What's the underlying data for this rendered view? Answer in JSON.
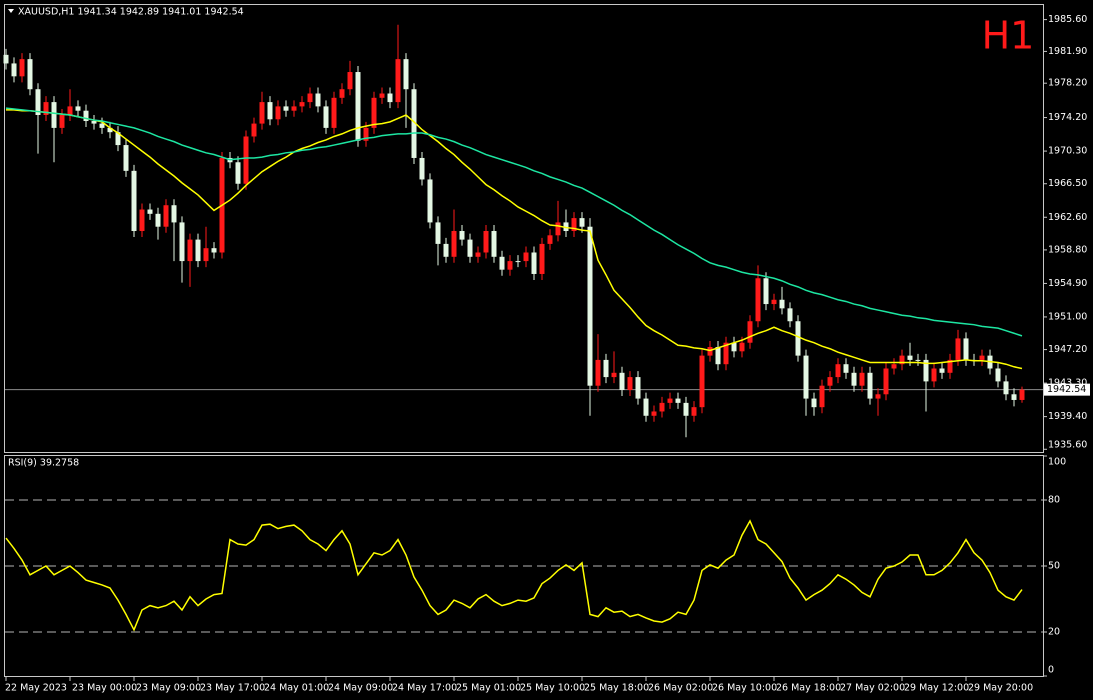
{
  "chart_data": [
    {
      "type": "candlestick",
      "title": "XAUUSD,H1  1941.34 1942.89 1941.01 1942.54",
      "timeframe": "H1",
      "categories": [
        "22 May 2023",
        null,
        null,
        null,
        null,
        null,
        null,
        null,
        "23 May 00:00",
        null,
        null,
        null,
        null,
        null,
        null,
        null,
        "23 May 09:00",
        null,
        null,
        null,
        null,
        null,
        null,
        null,
        "23 May 17:00",
        null,
        null,
        null,
        null,
        null,
        null,
        null,
        "24 May 01:00",
        null,
        null,
        null,
        null,
        null,
        null,
        null,
        "24 May 09:00",
        null,
        null,
        null,
        null,
        null,
        null,
        null,
        "24 May 17:00",
        null,
        null,
        null,
        null,
        null,
        null,
        null,
        "25 May 01:00",
        null,
        null,
        null,
        null,
        null,
        null,
        null,
        "25 May 10:00",
        null,
        null,
        null,
        null,
        null,
        null,
        null,
        "25 May 18:00",
        null,
        null,
        null,
        null,
        null,
        null,
        null,
        "26 May 02:00",
        null,
        null,
        null,
        null,
        null,
        null,
        null,
        "26 May 10:00",
        null,
        null,
        null,
        null,
        null,
        null,
        null,
        "26 May 18:00",
        null,
        null,
        null,
        null,
        null,
        null,
        null,
        "27 May 02:00",
        null,
        null,
        null,
        null,
        null,
        null,
        null,
        "29 May 12:00",
        null,
        null,
        null,
        null,
        null,
        null,
        null,
        "29 May 20:00",
        null,
        null,
        null,
        null,
        null,
        null,
        null
      ],
      "open": [
        1981.5,
        1980.5,
        1979.0,
        1981.0,
        1977.5,
        1974.5,
        1976.0,
        1973.0,
        1974.5,
        1975.5,
        1975.0,
        1973.8,
        1973.5,
        1973.0,
        1972.5,
        1971.0,
        1968.0,
        1961.0,
        1963.5,
        1963.0,
        1961.5,
        1964.0,
        1962.0,
        1957.5,
        1960.0,
        1957.5,
        1959.0,
        1958.5,
        1969.5,
        1969.0,
        1966.5,
        1972.0,
        1973.5,
        1976.0,
        1974.0,
        1975.5,
        1975.0,
        1975.5,
        1976.0,
        1977.0,
        1975.5,
        1973.0,
        1976.5,
        1977.5,
        1979.5,
        1971.5,
        1973.0,
        1976.5,
        1977.0,
        1976.0,
        1981.0,
        1977.5,
        1969.5,
        1967.0,
        1962.0,
        1959.5,
        1958.0,
        1961.0,
        1960.0,
        1958.0,
        1958.5,
        1961.0,
        1958.0,
        1956.5,
        1957.5,
        1957.5,
        1958.5,
        1956.0,
        1959.5,
        1960.5,
        1962.0,
        1961.0,
        1962.5,
        1961.5,
        1943.0,
        1946.0,
        1944.0,
        1944.5,
        1942.5,
        1944.0,
        1941.5,
        1939.5,
        1940.0,
        1941.0,
        1941.5,
        1941.0,
        1939.5,
        1940.5,
        1946.5,
        1947.5,
        1945.5,
        1948.0,
        1947.0,
        1948.0,
        1950.5,
        1955.5,
        1952.5,
        1953.0,
        1952.0,
        1950.5,
        1946.5,
        1941.5,
        1940.5,
        1943.0,
        1944.0,
        1945.5,
        1944.5,
        1943.0,
        1944.5,
        1941.5,
        1942.0,
        1945.0,
        1945.5,
        1946.5,
        1946.0,
        1946.0,
        1943.5,
        1945.0,
        1944.5,
        1946.0,
        1948.5,
        1946.0,
        1946.0,
        1946.5,
        1945.0,
        1943.5,
        1942.0,
        1941.34
      ],
      "high": [
        1982.2,
        1981.2,
        1981.7,
        1981.7,
        1978.2,
        1976.7,
        1976.7,
        1975.2,
        1977.5,
        1976.2,
        1975.7,
        1974.5,
        1974.2,
        1973.7,
        1973.2,
        1971.7,
        1968.7,
        1964.2,
        1964.2,
        1963.7,
        1964.7,
        1964.7,
        1962.7,
        1960.7,
        1960.7,
        1961.5,
        1959.7,
        1970.2,
        1970.2,
        1969.7,
        1972.7,
        1974.2,
        1977.2,
        1976.7,
        1976.2,
        1976.2,
        1976.2,
        1976.7,
        1977.7,
        1977.7,
        1976.2,
        1977.2,
        1978.2,
        1980.8,
        1980.2,
        1973.7,
        1977.2,
        1977.7,
        1977.7,
        1985.0,
        1981.7,
        1978.2,
        1970.2,
        1967.7,
        1962.7,
        1960.2,
        1963.5,
        1961.7,
        1960.7,
        1959.2,
        1961.7,
        1961.7,
        1958.7,
        1958.2,
        1958.2,
        1959.2,
        1959.2,
        1960.2,
        1961.2,
        1964.5,
        1963.5,
        1963.2,
        1963.2,
        1962.5,
        1949.0,
        1946.7,
        1947.0,
        1945.2,
        1944.7,
        1944.7,
        1942.2,
        1940.7,
        1941.7,
        1942.2,
        1942.2,
        1941.7,
        1941.2,
        1947.2,
        1948.2,
        1948.2,
        1948.7,
        1948.7,
        1948.7,
        1951.2,
        1957.0,
        1956.2,
        1953.7,
        1954.5,
        1952.7,
        1951.2,
        1947.2,
        1942.2,
        1943.7,
        1944.7,
        1946.2,
        1946.2,
        1945.2,
        1945.2,
        1945.2,
        1942.7,
        1945.7,
        1946.2,
        1947.2,
        1948.0,
        1946.7,
        1946.7,
        1945.7,
        1945.7,
        1946.7,
        1949.5,
        1949.2,
        1946.7,
        1947.2,
        1947.2,
        1945.7,
        1944.2,
        1942.7,
        1942.89
      ],
      "low": [
        1979.8,
        1978.3,
        1978.3,
        1976.8,
        1970.0,
        1973.8,
        1969.0,
        1972.3,
        1973.8,
        1974.3,
        1973.1,
        1972.8,
        1972.3,
        1971.8,
        1970.3,
        1967.3,
        1960.3,
        1960.3,
        1962.3,
        1960.0,
        1960.8,
        1957.5,
        1955.0,
        1954.5,
        1956.8,
        1956.8,
        1957.8,
        1957.8,
        1968.3,
        1965.8,
        1965.8,
        1971.3,
        1972.8,
        1973.3,
        1973.3,
        1974.3,
        1974.3,
        1974.8,
        1975.3,
        1974.8,
        1972.3,
        1972.3,
        1975.8,
        1976.8,
        1970.8,
        1970.8,
        1972.3,
        1975.8,
        1975.3,
        1975.3,
        1973.0,
        1968.8,
        1966.3,
        1961.3,
        1957.0,
        1957.3,
        1957.3,
        1959.3,
        1957.3,
        1957.3,
        1957.8,
        1957.3,
        1955.8,
        1955.8,
        1956.8,
        1956.8,
        1955.3,
        1955.3,
        1958.8,
        1959.8,
        1960.3,
        1960.3,
        1960.8,
        1939.5,
        1942.3,
        1943.3,
        1943.3,
        1941.8,
        1941.8,
        1940.8,
        1938.8,
        1938.8,
        1939.3,
        1940.3,
        1940.3,
        1937.0,
        1938.8,
        1939.8,
        1945.8,
        1944.8,
        1944.8,
        1946.3,
        1946.3,
        1947.3,
        1949.8,
        1951.8,
        1951.8,
        1951.3,
        1949.8,
        1945.8,
        1939.5,
        1939.5,
        1939.8,
        1942.3,
        1943.3,
        1943.8,
        1942.3,
        1942.3,
        1940.8,
        1939.5,
        1941.3,
        1944.3,
        1944.8,
        1945.3,
        1945.3,
        1940.0,
        1942.8,
        1943.8,
        1943.8,
        1945.3,
        1945.3,
        1945.3,
        1945.3,
        1944.3,
        1942.8,
        1941.3,
        1940.6,
        1941.01
      ],
      "close": [
        1980.5,
        1979.0,
        1981.0,
        1977.5,
        1974.5,
        1976.0,
        1973.0,
        1974.5,
        1975.5,
        1975.0,
        1973.8,
        1973.5,
        1973.0,
        1972.5,
        1971.0,
        1968.0,
        1961.0,
        1963.5,
        1963.0,
        1961.5,
        1964.0,
        1962.0,
        1957.5,
        1960.0,
        1957.5,
        1959.0,
        1958.5,
        1969.5,
        1969.0,
        1966.5,
        1972.0,
        1973.5,
        1976.0,
        1974.0,
        1975.5,
        1975.0,
        1975.5,
        1976.0,
        1977.0,
        1975.5,
        1973.0,
        1976.5,
        1977.5,
        1979.5,
        1971.5,
        1973.0,
        1976.5,
        1977.0,
        1976.0,
        1981.0,
        1977.5,
        1969.5,
        1967.0,
        1962.0,
        1959.5,
        1958.0,
        1961.0,
        1960.0,
        1958.0,
        1958.5,
        1961.0,
        1958.0,
        1956.5,
        1957.5,
        1957.5,
        1958.5,
        1956.0,
        1959.5,
        1960.5,
        1962.0,
        1961.0,
        1962.5,
        1961.5,
        1943.0,
        1946.0,
        1944.0,
        1944.5,
        1942.5,
        1944.0,
        1941.5,
        1939.5,
        1940.0,
        1941.0,
        1941.5,
        1941.0,
        1939.5,
        1940.5,
        1946.5,
        1947.5,
        1945.5,
        1948.0,
        1947.0,
        1948.0,
        1950.5,
        1955.5,
        1952.5,
        1953.0,
        1952.0,
        1950.5,
        1946.5,
        1941.5,
        1940.5,
        1943.0,
        1944.0,
        1945.5,
        1944.5,
        1943.0,
        1944.5,
        1941.5,
        1942.0,
        1945.0,
        1945.5,
        1946.5,
        1946.0,
        1946.0,
        1943.5,
        1945.0,
        1944.5,
        1946.0,
        1948.5,
        1946.0,
        1946.0,
        1946.5,
        1945.0,
        1943.5,
        1942.0,
        1941.34,
        1942.54
      ],
      "up_color": "#ff1a1a",
      "down_color": "#e4f7e4",
      "series": [
        {
          "color": "#ffff00",
          "values": [
            1975.1,
            1975.1,
            1975.0,
            1975.0,
            1974.9,
            1974.8,
            1974.7,
            1974.6,
            1974.5,
            1974.3,
            1974.1,
            1973.9,
            1973.7,
            1973.0,
            1972.4,
            1971.7,
            1971.0,
            1970.3,
            1969.6,
            1968.8,
            1968.1,
            1967.4,
            1966.6,
            1965.9,
            1965.2,
            1964.3,
            1963.4,
            1964.0,
            1964.6,
            1965.4,
            1966.3,
            1967.1,
            1967.9,
            1968.5,
            1969.1,
            1969.6,
            1970.2,
            1970.6,
            1970.9,
            1971.3,
            1971.6,
            1972.0,
            1972.3,
            1972.7,
            1973.0,
            1973.2,
            1973.4,
            1973.5,
            1973.7,
            1974.1,
            1974.5,
            1973.7,
            1972.8,
            1972.1,
            1971.4,
            1970.6,
            1969.9,
            1969.0,
            1968.2,
            1967.3,
            1966.4,
            1965.8,
            1965.1,
            1964.5,
            1963.8,
            1963.3,
            1962.8,
            1962.2,
            1961.7,
            1961.6,
            1961.4,
            1961.3,
            1961.1,
            1961.0,
            1957.6,
            1955.9,
            1954.1,
            1953.1,
            1952.1,
            1951.0,
            1950.0,
            1949.4,
            1948.9,
            1948.3,
            1947.7,
            1947.6,
            1947.4,
            1947.3,
            1947.1,
            1947.4,
            1947.7,
            1948.0,
            1948.3,
            1948.7,
            1949.1,
            1949.4,
            1949.8,
            1949.4,
            1949.1,
            1948.7,
            1948.3,
            1948.0,
            1947.6,
            1947.3,
            1946.9,
            1946.6,
            1946.3,
            1946.0,
            1945.7,
            1945.7,
            1945.7,
            1945.7,
            1945.7,
            1945.7,
            1945.7,
            1945.6,
            1945.6,
            1945.7,
            1945.8,
            1945.9,
            1946.0,
            1945.9,
            1945.9,
            1945.8,
            1945.7,
            1945.5,
            1945.2,
            1945.0
          ]
        },
        {
          "color": "#1de6a2",
          "values": [
            1975.3,
            1975.2,
            1975.1,
            1975.0,
            1974.9,
            1974.8,
            1974.7,
            1974.6,
            1974.5,
            1974.3,
            1974.1,
            1973.9,
            1973.8,
            1973.6,
            1973.4,
            1973.2,
            1973.0,
            1972.7,
            1972.4,
            1972.0,
            1971.7,
            1971.4,
            1971.0,
            1970.7,
            1970.4,
            1970.1,
            1969.9,
            1969.6,
            1969.3,
            1969.4,
            1969.5,
            1969.5,
            1969.6,
            1969.8,
            1969.9,
            1970.1,
            1970.2,
            1970.4,
            1970.5,
            1970.7,
            1970.8,
            1971.0,
            1971.2,
            1971.4,
            1971.6,
            1971.8,
            1971.9,
            1972.1,
            1972.2,
            1972.3,
            1972.3,
            1972.4,
            1972.4,
            1972.2,
            1971.9,
            1971.7,
            1971.4,
            1971.0,
            1970.7,
            1970.3,
            1969.9,
            1969.6,
            1969.3,
            1969.0,
            1968.7,
            1968.4,
            1968.0,
            1967.7,
            1967.3,
            1967.0,
            1966.7,
            1966.3,
            1966.0,
            1965.5,
            1965.0,
            1964.5,
            1964.0,
            1963.4,
            1962.9,
            1962.3,
            1961.7,
            1961.1,
            1960.6,
            1960.0,
            1959.4,
            1958.9,
            1958.4,
            1957.8,
            1957.3,
            1957.0,
            1956.8,
            1956.5,
            1956.2,
            1956.0,
            1955.9,
            1955.7,
            1955.5,
            1955.2,
            1954.8,
            1954.5,
            1954.1,
            1953.8,
            1953.6,
            1953.3,
            1953.0,
            1952.8,
            1952.5,
            1952.3,
            1952.0,
            1951.8,
            1951.6,
            1951.4,
            1951.2,
            1951.1,
            1950.9,
            1950.8,
            1950.6,
            1950.5,
            1950.4,
            1950.3,
            1950.2,
            1950.1,
            1949.9,
            1949.8,
            1949.7,
            1949.4,
            1949.1,
            1948.8
          ]
        }
      ],
      "current_price": 1942.54,
      "current_price_color": "#8c8c8c",
      "ylim": [
        1935.4,
        1987.3
      ],
      "yticks": [
        {
          "value": 1985.6,
          "label": "1985.60"
        },
        {
          "value": 1981.9,
          "label": "1981.90"
        },
        {
          "value": 1978.2,
          "label": "1978.20"
        },
        {
          "value": 1974.2,
          "label": "1974.20"
        },
        {
          "value": 1970.3,
          "label": "1970.30"
        },
        {
          "value": 1966.5,
          "label": "1966.50"
        },
        {
          "value": 1962.6,
          "label": "1962.60"
        },
        {
          "value": 1958.8,
          "label": "1958.80"
        },
        {
          "value": 1954.9,
          "label": "1954.90"
        },
        {
          "value": 1951.0,
          "label": "1951.00"
        },
        {
          "value": 1947.2,
          "label": "1947.20"
        },
        {
          "value": 1943.3,
          "label": "1943.30"
        },
        {
          "value": 1939.4,
          "label": "1939.40"
        },
        {
          "value": 1935.6,
          "label": "1935.60"
        }
      ],
      "grid": false
    },
    {
      "type": "line",
      "title": "RSI(9) 39.2758",
      "color": "#ffff00",
      "values": [
        62.7,
        58,
        52.7,
        46,
        48,
        50,
        46,
        48,
        50,
        47,
        43.6,
        42.5,
        41.4,
        40,
        34.5,
        28,
        21,
        30,
        32,
        31,
        32,
        34,
        30,
        36,
        32,
        35,
        37,
        37.5,
        62,
        60,
        59.5,
        62,
        68.6,
        69,
        67,
        68,
        68.6,
        66,
        62,
        60,
        57,
        62,
        66,
        60,
        46,
        51,
        56,
        55,
        57,
        62,
        55,
        45,
        39,
        32,
        28,
        30,
        34.5,
        33,
        31,
        35,
        37,
        34,
        32,
        33,
        34.5,
        34,
        35.5,
        42,
        44.5,
        48,
        50.5,
        48,
        51.4,
        28,
        27,
        31,
        29,
        29.5,
        27,
        28,
        26.4,
        25,
        24.5,
        26,
        29,
        28,
        34.5,
        48,
        50.5,
        49,
        52.7,
        55,
        64,
        70.5,
        62,
        60,
        56,
        52,
        44.5,
        40,
        34.5,
        37,
        39,
        42,
        46,
        44,
        41.4,
        38,
        36,
        44,
        49,
        50,
        51.8,
        55,
        55,
        46,
        46,
        48,
        51.4,
        56,
        62,
        56,
        52.7,
        47,
        39,
        36,
        34.5,
        39.2758
      ],
      "ylim": [
        0,
        100
      ],
      "yticks": [
        100,
        80,
        50,
        20,
        0
      ],
      "levels": [
        80,
        50,
        20
      ]
    }
  ]
}
